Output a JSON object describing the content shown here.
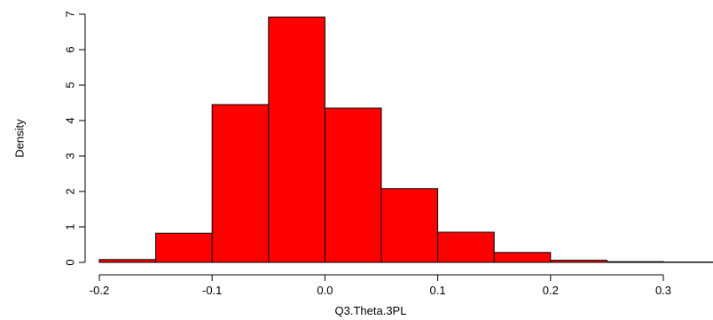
{
  "chart_data": {
    "type": "bar",
    "subtype": "histogram",
    "bins": [
      {
        "start": -0.2,
        "end": -0.15,
        "density": 0.08
      },
      {
        "start": -0.15,
        "end": -0.1,
        "density": 0.82
      },
      {
        "start": -0.1,
        "end": -0.05,
        "density": 4.45
      },
      {
        "start": -0.05,
        "end": 0.0,
        "density": 6.92
      },
      {
        "start": 0.0,
        "end": 0.05,
        "density": 4.35
      },
      {
        "start": 0.05,
        "end": 0.1,
        "density": 2.08
      },
      {
        "start": 0.1,
        "end": 0.15,
        "density": 0.85
      },
      {
        "start": 0.15,
        "end": 0.2,
        "density": 0.28
      },
      {
        "start": 0.2,
        "end": 0.25,
        "density": 0.06
      },
      {
        "start": 0.25,
        "end": 0.3,
        "density": 0.02
      },
      {
        "start": 0.3,
        "end": 0.35,
        "density": 0.01
      }
    ],
    "xlabel": "Q3.Theta.3PL",
    "ylabel": "Density",
    "xlim": [
      -0.2,
      0.35
    ],
    "ylim": [
      0,
      7
    ],
    "xticks": [
      -0.2,
      -0.1,
      0.0,
      0.1,
      0.2,
      0.3
    ],
    "xtick_labels": [
      "-0.2",
      "-0.1",
      "0.0",
      "0.1",
      "0.2",
      "0.3"
    ],
    "yticks": [
      0,
      1,
      2,
      3,
      4,
      5,
      6,
      7
    ],
    "ytick_labels": [
      "0",
      "1",
      "2",
      "3",
      "4",
      "5",
      "6",
      "7"
    ],
    "bar_color": "#ff0000",
    "edge_color": "#000000",
    "grid": false,
    "legend": "none"
  }
}
